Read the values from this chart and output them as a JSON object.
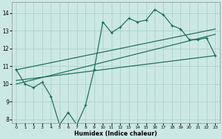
{
  "xlabel": "Humidex (Indice chaleur)",
  "bg_color": "#cce8e4",
  "grid_color": "#aacfca",
  "line_color": "#1a6b5a",
  "xlim": [
    -0.5,
    23.5
  ],
  "ylim": [
    7.8,
    14.6
  ],
  "xticks": [
    0,
    1,
    2,
    3,
    4,
    5,
    6,
    7,
    8,
    9,
    10,
    11,
    12,
    13,
    14,
    15,
    16,
    17,
    18,
    19,
    20,
    21,
    22,
    23
  ],
  "yticks": [
    8,
    9,
    10,
    11,
    12,
    13,
    14
  ],
  "jagged_x": [
    0,
    1,
    2,
    3,
    4,
    5,
    6,
    7,
    8,
    9,
    10,
    11,
    12,
    13,
    14,
    15,
    16,
    17,
    18,
    19,
    20,
    21,
    22,
    23
  ],
  "jagged_y": [
    10.8,
    10.0,
    9.8,
    10.1,
    9.3,
    7.7,
    8.4,
    7.7,
    8.8,
    10.8,
    13.5,
    12.9,
    13.2,
    13.7,
    13.5,
    13.6,
    14.2,
    13.9,
    13.3,
    13.1,
    12.5,
    12.5,
    12.6,
    11.6
  ],
  "line1_x": [
    0,
    23
  ],
  "line1_y": [
    10.8,
    13.1
  ],
  "line2_x": [
    0,
    23
  ],
  "line2_y": [
    10.0,
    12.8
  ],
  "line3_x": [
    0,
    23
  ],
  "line3_y": [
    10.2,
    11.6
  ]
}
